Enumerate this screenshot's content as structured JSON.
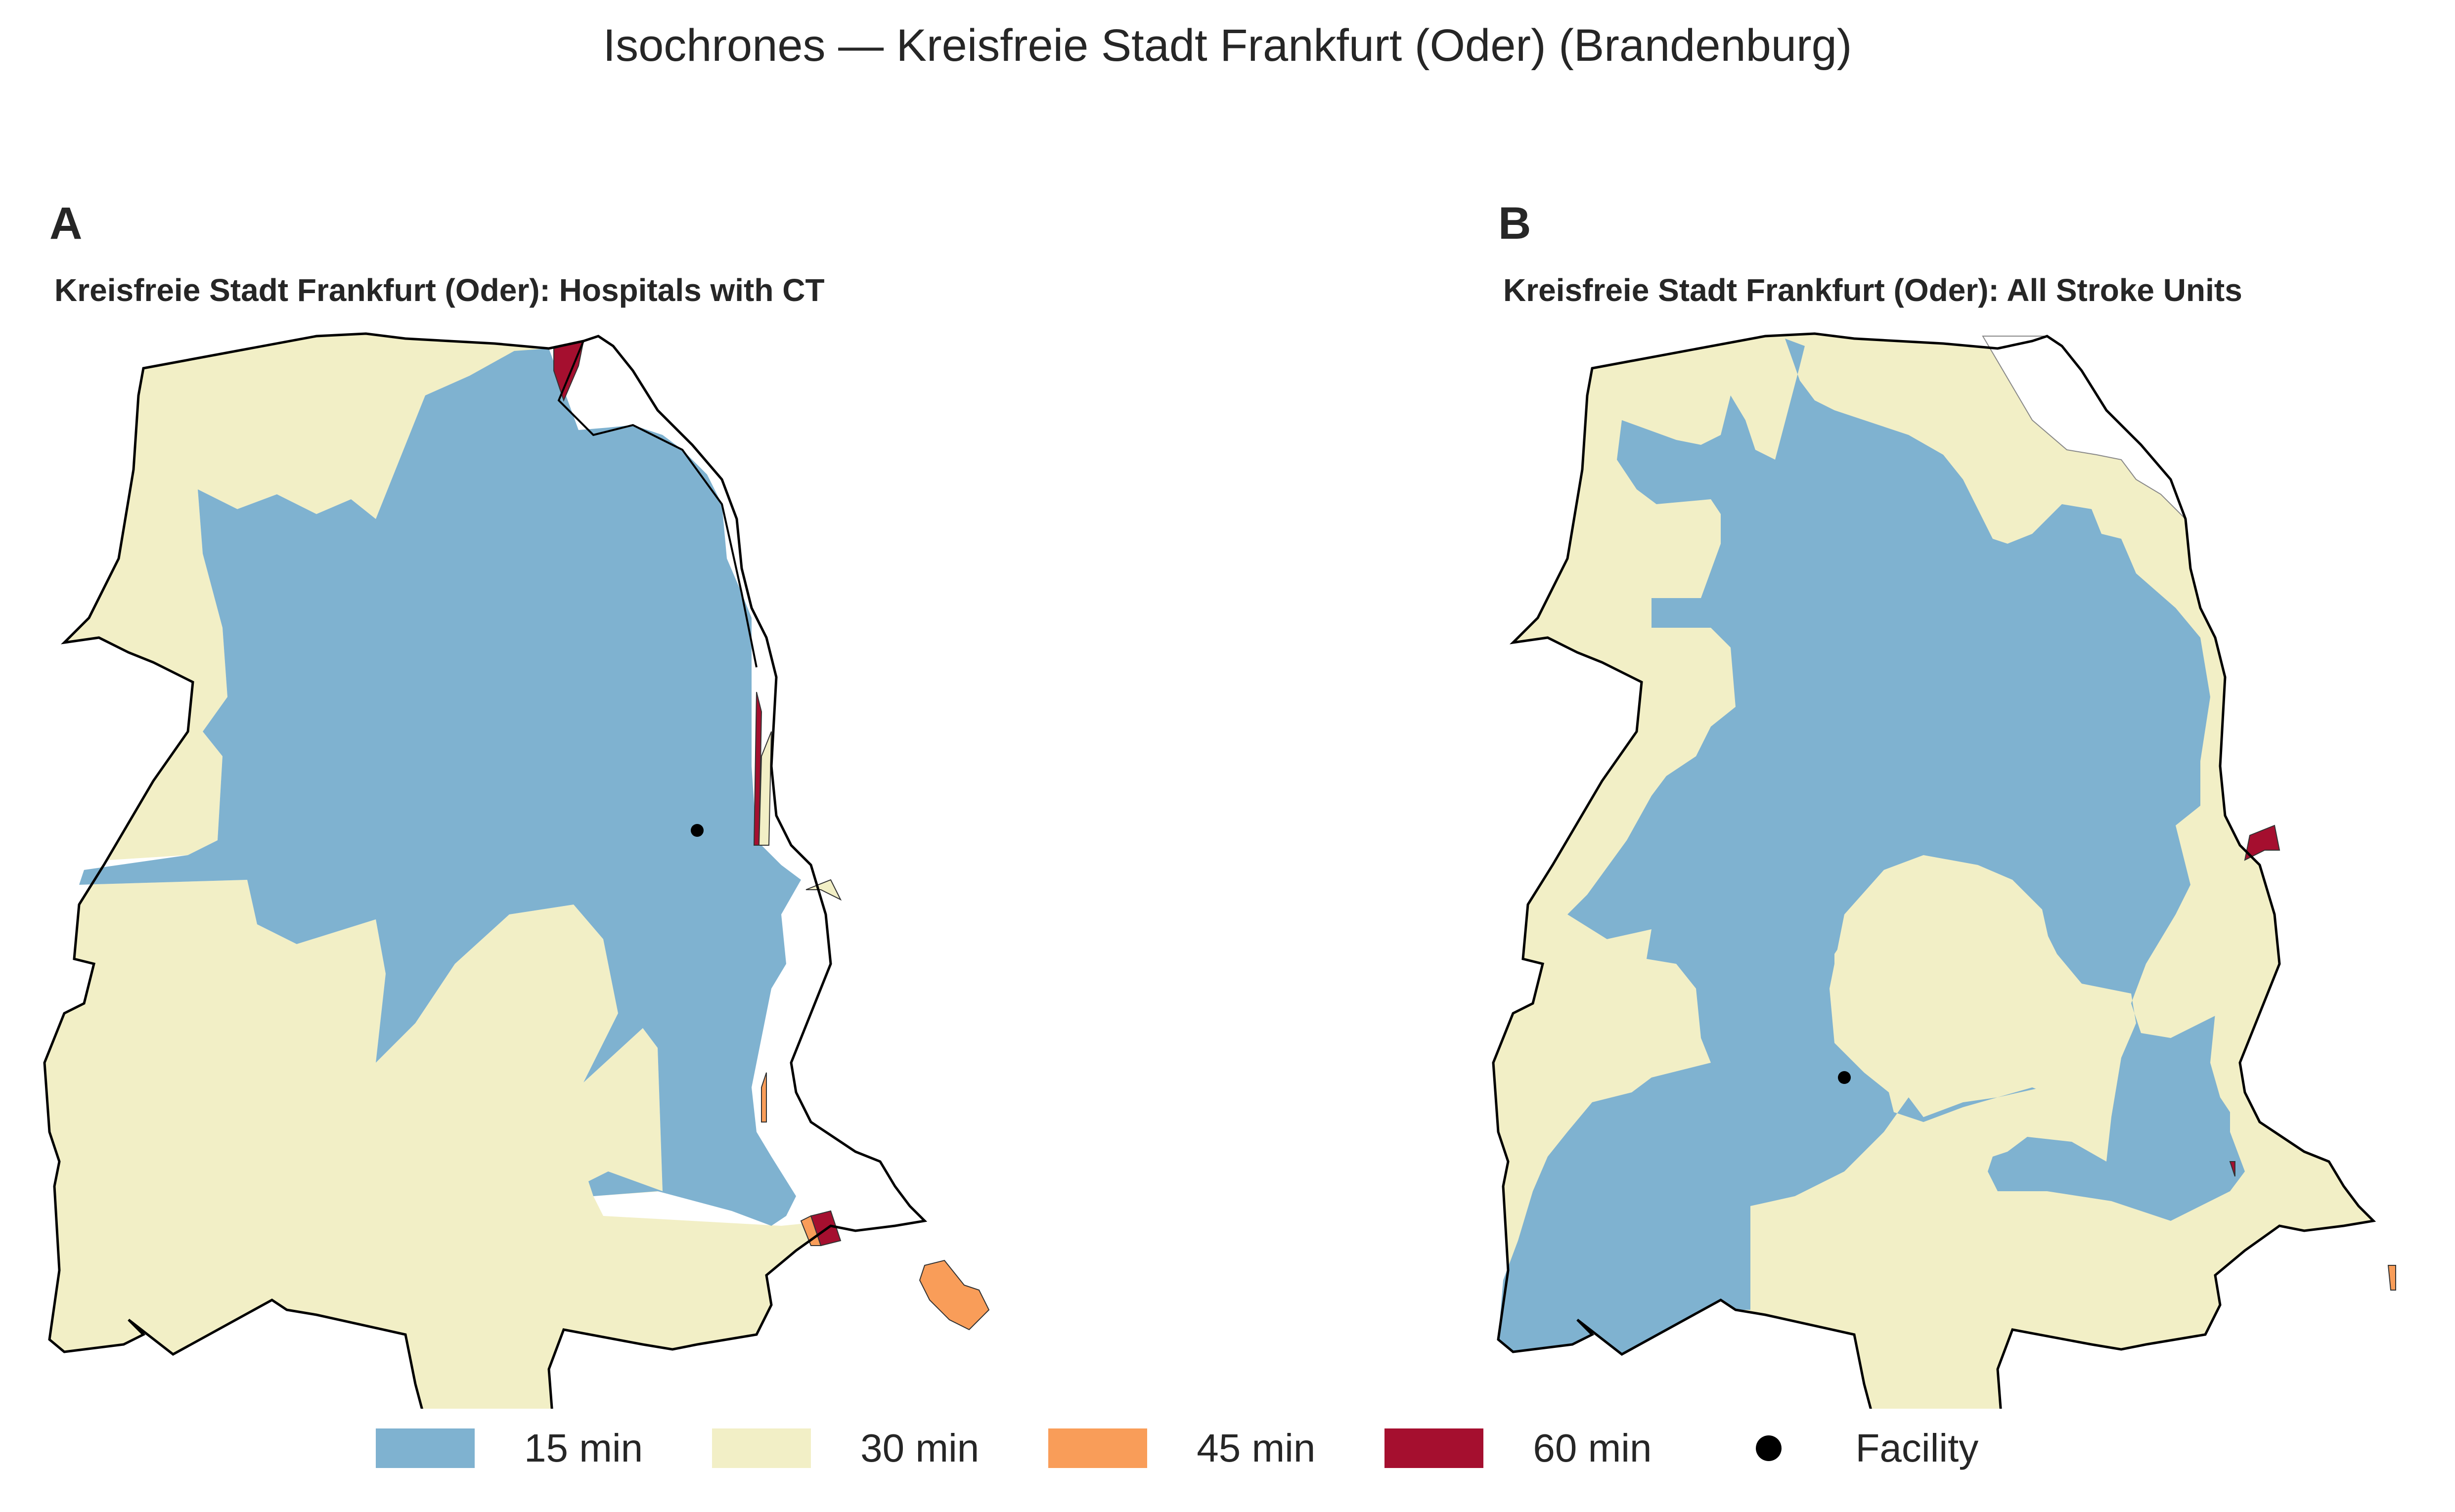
{
  "title": "Isochrones — Kreisfreie Stadt Frankfurt (Oder) (Brandenburg)",
  "panels": [
    {
      "letter": "A",
      "title": "Kreisfreie Stadt Frankfurt (Oder): Hospitals with CT"
    },
    {
      "letter": "B",
      "title": "Kreisfreie Stadt Frankfurt (Oder): All Stroke Units"
    }
  ],
  "legend": [
    {
      "label": "15 min",
      "color": "#7fb2d0"
    },
    {
      "label": "30 min",
      "color": "#f2efc6"
    },
    {
      "label": "45 min",
      "color": "#f99d59"
    },
    {
      "label": "60 min",
      "color": "#a50f2f"
    },
    {
      "label": "Facility",
      "color": "#000000"
    }
  ]
}
